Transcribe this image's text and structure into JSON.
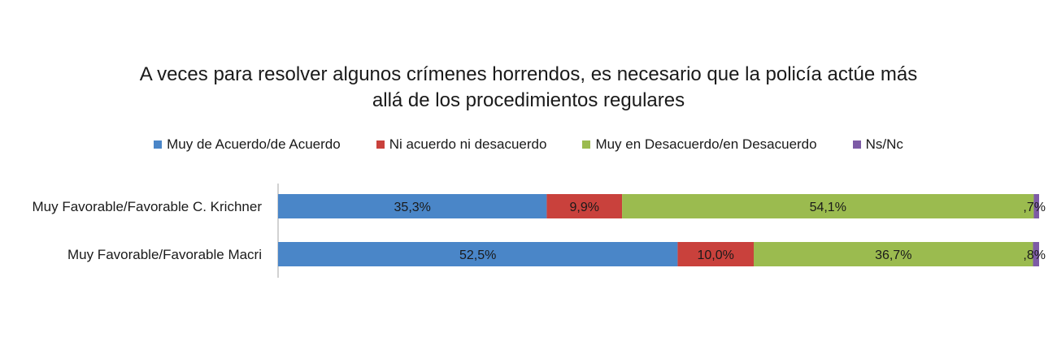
{
  "chart_data": {
    "type": "bar",
    "orientation": "horizontal",
    "stacked": "100%",
    "title": "A veces para resolver algunos crímenes horrendos, es necesario que la policía actúe más allá de los procedimientos regulares",
    "title_lines": [
      "A veces para resolver algunos crímenes horrendos, es necesario que la policía actúe más",
      "allá de los procedimientos regulares"
    ],
    "categories": [
      "Muy Favorable/Favorable C. Krichner",
      "Muy Favorable/Favorable Macri"
    ],
    "series": [
      {
        "name": "Muy de Acuerdo/de Acuerdo",
        "color": "#4a86c8",
        "values": [
          35.3,
          52.5
        ],
        "labels": [
          "35,3%",
          "52,5%"
        ]
      },
      {
        "name": "Ni acuerdo ni desacuerdo",
        "color": "#c9413c",
        "values": [
          9.9,
          10.0
        ],
        "labels": [
          "9,9%",
          "10,0%"
        ]
      },
      {
        "name": "Muy en Desacuerdo/en Desacuerdo",
        "color": "#9bbb4f",
        "values": [
          54.1,
          36.7
        ],
        "labels": [
          "54,1%",
          "36,7%"
        ]
      },
      {
        "name": "Ns/Nc",
        "color": "#7d5ba6",
        "values": [
          0.7,
          0.8
        ],
        "labels": [
          ",7%",
          ",8%"
        ]
      }
    ],
    "xlim": [
      0,
      100
    ],
    "legend_position": "top",
    "grid": false
  }
}
